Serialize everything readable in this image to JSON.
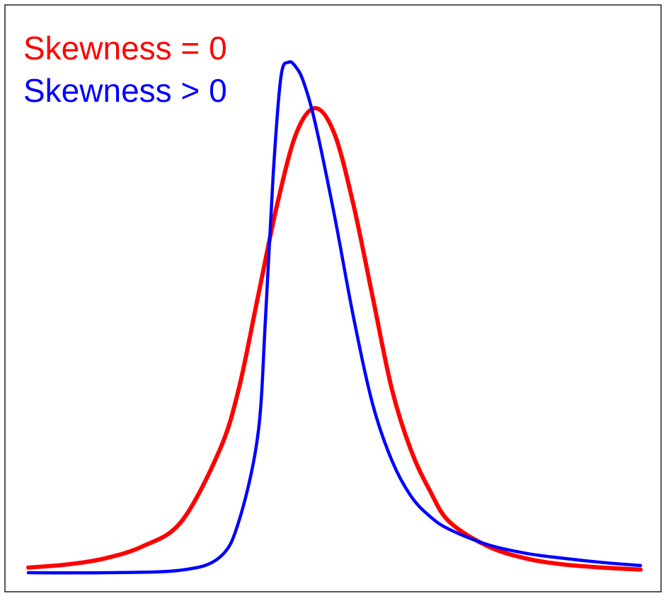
{
  "chart_data": {
    "type": "line",
    "title": "",
    "xlabel": "",
    "ylabel": "",
    "xlim": [
      -4,
      4
    ],
    "ylim": [
      0,
      1.1
    ],
    "grid": false,
    "legend": "top-left",
    "series": [
      {
        "name": "Skewness = 0",
        "color": "#ff0000",
        "x": [
          -4.0,
          -3.5,
          -3.0,
          -2.5,
          -2.0,
          -1.5,
          -1.25,
          -1.0,
          -0.75,
          -0.5,
          -0.25,
          0.0,
          0.25,
          0.5,
          0.75,
          1.0,
          1.25,
          1.5,
          2.0,
          2.5,
          3.0,
          3.5,
          4.0
        ],
        "y": [
          0.01,
          0.016,
          0.028,
          0.052,
          0.1,
          0.24,
          0.36,
          0.54,
          0.72,
          0.86,
          0.91,
          0.86,
          0.72,
          0.54,
          0.36,
          0.24,
          0.16,
          0.1,
          0.052,
          0.028,
          0.016,
          0.01,
          0.006
        ]
      },
      {
        "name": "Skewness > 0",
        "color": "#0000ff",
        "x": [
          -4.0,
          -3.0,
          -2.0,
          -1.5,
          -1.25,
          -1.0,
          -0.9,
          -0.8,
          -0.7,
          -0.6,
          -0.5,
          -0.4,
          -0.25,
          0.0,
          0.25,
          0.5,
          0.75,
          1.0,
          1.25,
          1.5,
          2.0,
          2.5,
          3.0,
          3.5,
          4.0
        ],
        "y": [
          0.0,
          0.0,
          0.005,
          0.03,
          0.1,
          0.27,
          0.5,
          0.78,
          0.97,
          1.0,
          0.99,
          0.96,
          0.88,
          0.7,
          0.5,
          0.33,
          0.22,
          0.15,
          0.11,
          0.085,
          0.055,
          0.038,
          0.028,
          0.02,
          0.014
        ]
      }
    ]
  }
}
